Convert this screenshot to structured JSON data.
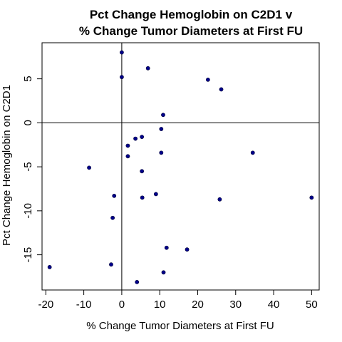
{
  "chart_data": {
    "type": "scatter",
    "title_lines": [
      "Pct Change Hemoglobin on C2D1 v",
      "% Change Tumor Diameters at First FU"
    ],
    "xlabel": "% Change Tumor Diameters at First FU",
    "ylabel": "Pct Change Hemoglobin on C2D1",
    "xlim": [
      -21,
      52
    ],
    "ylim": [
      -19,
      9.1
    ],
    "xticks": [
      -20,
      -10,
      0,
      10,
      20,
      30,
      40,
      50
    ],
    "yticks": [
      -15,
      -10,
      -5,
      0,
      5
    ],
    "xtick_labels": [
      "-20",
      "-10",
      "0",
      "10",
      "20",
      "30",
      "40",
      "50"
    ],
    "ytick_labels": [
      "-15",
      "-10",
      "-5",
      "0",
      "5"
    ],
    "reference_lines": {
      "x": 0,
      "y": 0
    },
    "grid": false,
    "point_color": "#00008b",
    "points": [
      {
        "x": 0.0,
        "y": 8.0
      },
      {
        "x": 0.0,
        "y": 5.2
      },
      {
        "x": 6.9,
        "y": 6.2
      },
      {
        "x": 22.7,
        "y": 4.9
      },
      {
        "x": 26.2,
        "y": 3.8
      },
      {
        "x": 10.9,
        "y": 0.9
      },
      {
        "x": 10.4,
        "y": -0.7
      },
      {
        "x": 3.6,
        "y": -1.8
      },
      {
        "x": 5.3,
        "y": -1.6
      },
      {
        "x": 1.6,
        "y": -2.6
      },
      {
        "x": 1.6,
        "y": -3.8
      },
      {
        "x": 10.4,
        "y": -3.4
      },
      {
        "x": 34.5,
        "y": -3.4
      },
      {
        "x": -8.6,
        "y": -5.1
      },
      {
        "x": 5.3,
        "y": -5.5
      },
      {
        "x": -2.0,
        "y": -8.3
      },
      {
        "x": 5.4,
        "y": -8.5
      },
      {
        "x": 9.0,
        "y": -8.1
      },
      {
        "x": 25.8,
        "y": -8.7
      },
      {
        "x": 50.0,
        "y": -8.5
      },
      {
        "x": -2.4,
        "y": -10.8
      },
      {
        "x": 11.8,
        "y": -14.2
      },
      {
        "x": 17.2,
        "y": -14.4
      },
      {
        "x": -2.8,
        "y": -16.1
      },
      {
        "x": -19.0,
        "y": -16.4
      },
      {
        "x": 11.0,
        "y": -17.0
      },
      {
        "x": 4.0,
        "y": -18.1
      }
    ]
  }
}
